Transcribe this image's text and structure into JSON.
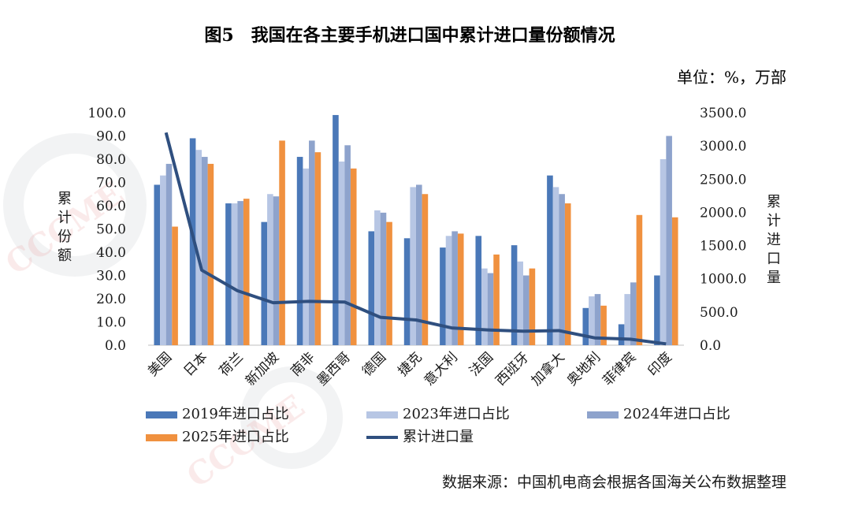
{
  "chart_data": {
    "type": "bar",
    "title": "图5　我国在各主要手机进口国中累计进口量份额情况",
    "unit_note": "单位：%，万部",
    "ylabel_left": "累计份额",
    "ylabel_right": "累计进口量",
    "source_note": "数据来源：中国机电商会根据各国海关公布数据整理",
    "ylim_left": [
      0,
      100
    ],
    "ylim_right": [
      0,
      3500
    ],
    "yticks_left": [
      "0.0",
      "10.0",
      "20.0",
      "30.0",
      "40.0",
      "50.0",
      "60.0",
      "70.0",
      "80.0",
      "90.0",
      "100.0"
    ],
    "yticks_right": [
      "0.0",
      "500.0",
      "1000.0",
      "1500.0",
      "2000.0",
      "2500.0",
      "3000.0",
      "3500.0"
    ],
    "categories": [
      "美国",
      "日本",
      "荷兰",
      "新加坡",
      "南非",
      "墨西哥",
      "德国",
      "捷克",
      "意大利",
      "法国",
      "西班牙",
      "加拿大",
      "奥地利",
      "菲律宾",
      "印度"
    ],
    "series": [
      {
        "name": "2019年进口占比",
        "type": "bar",
        "color": "#4a78b8",
        "values": [
          69,
          89,
          61,
          53,
          81,
          99,
          49,
          46,
          42,
          47,
          43,
          73,
          16,
          9,
          30
        ]
      },
      {
        "name": "2023年进口占比",
        "type": "bar",
        "color": "#b7c6e4",
        "values": [
          73,
          84,
          61,
          65,
          76,
          79,
          58,
          68,
          47,
          33,
          36,
          68,
          21,
          22,
          80
        ]
      },
      {
        "name": "2024年进口占比",
        "type": "bar",
        "color": "#8ea3cc",
        "values": [
          78,
          81,
          62,
          64,
          88,
          86,
          57,
          69,
          49,
          31,
          30,
          65,
          22,
          27,
          90
        ]
      },
      {
        "name": "2025年进口占比",
        "type": "bar",
        "color": "#f0913f",
        "values": [
          51,
          78,
          63,
          88,
          83,
          76,
          53,
          65,
          48,
          39,
          33,
          61,
          17,
          56,
          55
        ]
      },
      {
        "name": "累计进口量",
        "type": "line",
        "axis": "right",
        "color": "#2f4f7f",
        "values": [
          3200,
          1130,
          820,
          640,
          660,
          650,
          420,
          380,
          260,
          230,
          210,
          220,
          110,
          90,
          20
        ]
      }
    ],
    "legend_position": "bottom",
    "grid": false
  },
  "watermark": "CCCME"
}
